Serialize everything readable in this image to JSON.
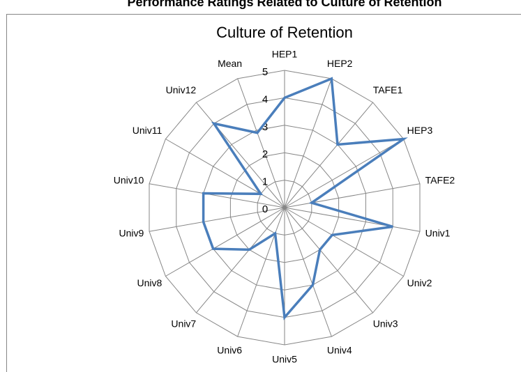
{
  "chart_data": {
    "type": "radar",
    "page_title": "Performance Ratings Related to Culture of Retention",
    "title": "Culture of Retention",
    "categories": [
      "HEP1",
      "HEP2",
      "TAFE1",
      "HEP3",
      "TAFE2",
      "Univ1",
      "Univ2",
      "Univ3",
      "Univ4",
      "Univ5",
      "Univ6",
      "Univ7",
      "Univ8",
      "Univ9",
      "Univ10",
      "Univ11",
      "Univ12",
      "Mean"
    ],
    "series": [
      {
        "name": "Culture of Retention",
        "color": "#4a7ebb",
        "values": [
          4,
          5,
          3,
          5,
          1,
          4,
          2,
          2,
          3,
          4,
          1,
          2,
          3,
          3,
          3,
          1,
          4,
          2.9
        ]
      }
    ],
    "ylim": [
      0,
      5
    ],
    "yticks": [
      0,
      1,
      2,
      3,
      4,
      5
    ],
    "grid": true
  }
}
